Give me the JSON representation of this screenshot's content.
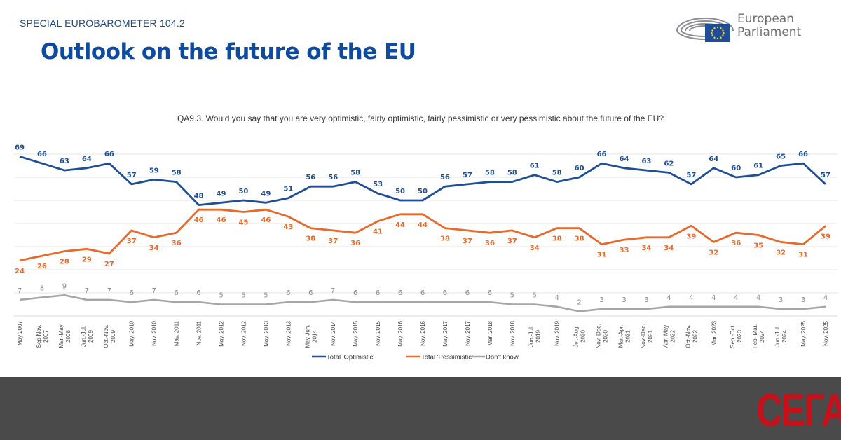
{
  "header": {
    "kicker": "SPECIAL EUROBAROMETER 104.2",
    "title": "Outlook on the future of the EU",
    "logo_line1": "European",
    "logo_line2": "Parliament"
  },
  "question": "QA9.3. Would you say that you are very optimistic, fairly optimistic, fairly pessimistic or very pessimistic about the future of the EU?",
  "footer": {
    "brand": "СЕГА",
    "band_color": "#4a4a4a",
    "brand_color": "#c8101a"
  },
  "chart_data": {
    "type": "line",
    "title": "Outlook on the future of the EU",
    "subtitle": "QA9.3. Would you say that you are very optimistic, fairly optimistic, fairly pessimistic or very pessimistic about the future of the EU?",
    "xlabel": "",
    "ylabel": "",
    "ylim": [
      0,
      70
    ],
    "grid": true,
    "legend_position": "bottom-center",
    "categories": [
      "May 2007",
      "Sep-Nov. 2007",
      "Mar.-May 2008",
      "Jun.-Jul. 2009",
      "Oct.-Nov. 2009",
      "May. 2010",
      "Nov. 2010",
      "May. 2011",
      "Nov. 2011",
      "May. 2012",
      "Nov. 2012",
      "May. 2013",
      "Nov. 2013",
      "May-Jun. 2014",
      "Nov. 2014",
      "May. 2015",
      "Nov. 2015",
      "May. 2016",
      "Nov. 2016",
      "May. 2017",
      "Nov. 2017",
      "Mar. 2018",
      "Nov. 2018",
      "Jun.-Jul. 2019",
      "Nov. 2019",
      "Jul.-Aug. 2020",
      "Nov.-Dec. 2020",
      "Mar.-Apr. 2021",
      "Nov.-Dec. 2021",
      "Apr.-May 2022",
      "Oct.-Nov. 2022",
      "Mar. 2023",
      "Sep.-Oct. 2023",
      "Feb.-Mar. 2024",
      "Jun.-Jul. 2024",
      "May. 2025",
      "Nov. 2025"
    ],
    "series": [
      {
        "name": "Total 'Optimistic'",
        "color": "#1f4e96",
        "values": [
          69,
          66,
          63,
          64,
          66,
          57,
          59,
          58,
          48,
          49,
          50,
          49,
          51,
          56,
          56,
          58,
          53,
          50,
          50,
          56,
          57,
          58,
          58,
          61,
          58,
          60,
          66,
          64,
          63,
          62,
          57,
          64,
          60,
          61,
          65,
          66,
          57
        ]
      },
      {
        "name": "Total 'Pessimistic'",
        "color": "#e8692a",
        "values": [
          24,
          26,
          28,
          29,
          27,
          37,
          34,
          36,
          46,
          46,
          45,
          46,
          43,
          38,
          37,
          36,
          41,
          44,
          44,
          38,
          37,
          36,
          37,
          34,
          38,
          38,
          31,
          33,
          34,
          34,
          39,
          32,
          36,
          35,
          32,
          31,
          39
        ]
      },
      {
        "name": "Don't know",
        "color": "#a6a6a6",
        "values": [
          7,
          8,
          9,
          7,
          7,
          6,
          7,
          6,
          6,
          5,
          5,
          5,
          6,
          6,
          7,
          6,
          6,
          6,
          6,
          6,
          6,
          6,
          5,
          5,
          4,
          2,
          3,
          3,
          3,
          4,
          4,
          4,
          4,
          4,
          3,
          3,
          4
        ]
      }
    ]
  }
}
